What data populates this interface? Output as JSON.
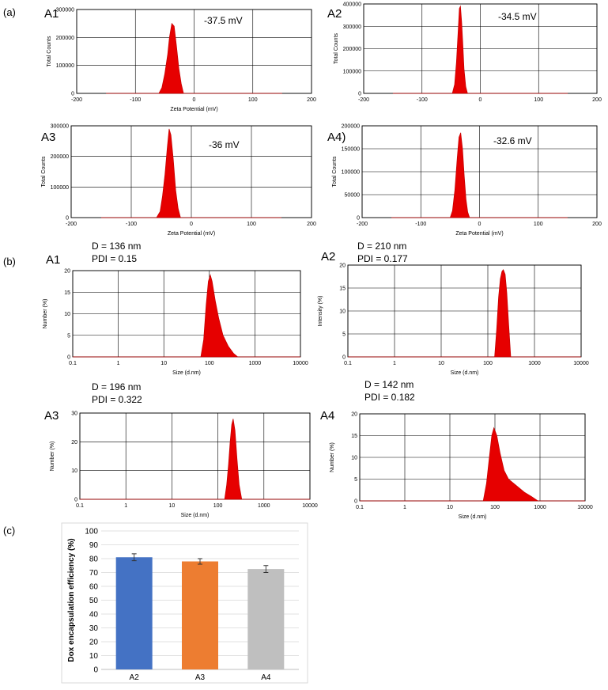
{
  "panels": {
    "a": "(a)",
    "b": "(b)",
    "c": "(c)"
  },
  "colors": {
    "peak": "#e60000",
    "peak_dark": "#c40000",
    "bar_a2": "#4472c4",
    "bar_a3": "#ed7d31",
    "bar_a4": "#bfbfbf"
  },
  "chart_data": [
    {
      "type": "area",
      "panel_label": "A1",
      "annotation": "-37.5 mV",
      "xlabel": "Zeta Potential (mV)",
      "ylabel": "Total Counts",
      "xlim": [
        -200,
        200
      ],
      "ylim": [
        0,
        300000
      ],
      "x_ticks": [
        -200,
        -100,
        0,
        100,
        200
      ],
      "y_ticks": [
        0,
        100000,
        200000,
        300000
      ],
      "grid": true,
      "series": [
        {
          "x": [
            -150,
            -60,
            -55,
            -50,
            -45,
            -42,
            -38,
            -34,
            -30,
            -26,
            -22,
            -18,
            150
          ],
          "y": [
            0,
            0,
            20000,
            70000,
            140000,
            200000,
            250000,
            240000,
            170000,
            90000,
            35000,
            0,
            0
          ]
        }
      ]
    },
    {
      "type": "area",
      "panel_label": "A2",
      "annotation": "-34.5 mV",
      "xlabel": "",
      "ylabel": "Total Counts",
      "xlim": [
        -200,
        200
      ],
      "ylim": [
        0,
        400000
      ],
      "x_ticks": [
        -200,
        -100,
        0,
        100,
        200
      ],
      "y_ticks": [
        0,
        100000,
        200000,
        300000,
        400000
      ],
      "grid": true,
      "series": [
        {
          "x": [
            -150,
            -48,
            -44,
            -41,
            -38,
            -36,
            -34,
            -32,
            -30,
            -28,
            -25,
            -22,
            150
          ],
          "y": [
            0,
            0,
            40000,
            140000,
            280000,
            380000,
            390000,
            320000,
            220000,
            110000,
            30000,
            0,
            0
          ]
        }
      ]
    },
    {
      "type": "area",
      "panel_label": "A3",
      "annotation": "-36 mV",
      "xlabel": "Zeta Potential (mV)",
      "ylabel": "Total Counts",
      "xlim": [
        -200,
        200
      ],
      "ylim": [
        0,
        300000
      ],
      "x_ticks": [
        -200,
        -100,
        0,
        100,
        200
      ],
      "y_ticks": [
        0,
        100000,
        200000,
        300000
      ],
      "grid": true,
      "series": [
        {
          "x": [
            -150,
            -58,
            -52,
            -48,
            -44,
            -40,
            -37,
            -34,
            -30,
            -26,
            -22,
            -18,
            150
          ],
          "y": [
            0,
            0,
            20000,
            70000,
            140000,
            230000,
            290000,
            270000,
            190000,
            90000,
            30000,
            0,
            0
          ]
        }
      ]
    },
    {
      "type": "area",
      "panel_label": "A4)",
      "annotation": "-32.6 mV",
      "xlabel": "Zeta Potential (mV)",
      "ylabel": "Total Counts",
      "xlim": [
        -200,
        200
      ],
      "ylim": [
        0,
        200000
      ],
      "x_ticks": [
        -200,
        -100,
        0,
        100,
        200
      ],
      "y_ticks": [
        0,
        50000,
        100000,
        150000,
        200000
      ],
      "grid": true,
      "series": [
        {
          "x": [
            -150,
            -50,
            -46,
            -42,
            -38,
            -35,
            -32,
            -29,
            -26,
            -23,
            -20,
            -17,
            150
          ],
          "y": [
            0,
            0,
            15000,
            60000,
            130000,
            175000,
            185000,
            150000,
            90000,
            40000,
            12000,
            0,
            0
          ]
        }
      ]
    },
    {
      "type": "area",
      "panel_label": "A1",
      "annotation": "D = 136 nm",
      "annotation2": "PDI = 0.15",
      "xlabel": "Size (d.nm)",
      "ylabel": "Number (%)",
      "x_scale": "log",
      "xlim": [
        0.1,
        10000
      ],
      "ylim": [
        0,
        20
      ],
      "x_ticks": [
        0.1,
        1,
        10,
        100,
        1000,
        10000
      ],
      "x_tick_labels": [
        "0.1",
        "1",
        "10",
        "100",
        "1000",
        "10000"
      ],
      "y_ticks": [
        0,
        5,
        10,
        15,
        20
      ],
      "grid": true,
      "series": [
        {
          "x": [
            0.1,
            65,
            75,
            85,
            95,
            105,
            115,
            135,
            160,
            200,
            260,
            340,
            420,
            10000
          ],
          "y": [
            0,
            0,
            4,
            12,
            17.5,
            19,
            17.5,
            13,
            9,
            5,
            2.5,
            0.8,
            0,
            0
          ]
        }
      ]
    },
    {
      "type": "area",
      "panel_label": "A2",
      "annotation": "D = 210 nm",
      "annotation2": "PDI = 0.177",
      "xlabel": "Size (d.nm)",
      "ylabel": "Intensity (%)",
      "x_scale": "log",
      "xlim": [
        0.1,
        10000
      ],
      "ylim": [
        0,
        20
      ],
      "x_ticks": [
        0.1,
        1,
        10,
        100,
        1000,
        10000
      ],
      "x_tick_labels": [
        "0.1",
        "1",
        "10",
        "100",
        "1000",
        "10000"
      ],
      "y_ticks": [
        0,
        5,
        10,
        15,
        20
      ],
      "grid": true,
      "series": [
        {
          "x": [
            0.1,
            140,
            155,
            170,
            185,
            200,
            215,
            235,
            255,
            280,
            310,
            10000
          ],
          "y": [
            0,
            0,
            6,
            13,
            17,
            18.6,
            19,
            18,
            14,
            7,
            0,
            0
          ]
        }
      ]
    },
    {
      "type": "area",
      "panel_label": "A3",
      "annotation": "D = 196 nm",
      "annotation2": "PDI = 0.322",
      "xlabel": "Size (d.nm)",
      "ylabel": "Number (%)",
      "x_scale": "log",
      "xlim": [
        0.1,
        10000
      ],
      "ylim": [
        0,
        30
      ],
      "x_ticks": [
        0.1,
        1,
        10,
        100,
        1000,
        10000
      ],
      "x_tick_labels": [
        "0.1",
        "1",
        "10",
        "100",
        "1000",
        "10000"
      ],
      "y_ticks": [
        0,
        10,
        20,
        30
      ],
      "grid": true,
      "series": [
        {
          "x": [
            0.1,
            140,
            155,
            170,
            185,
            200,
            215,
            235,
            260,
            290,
            330,
            10000
          ],
          "y": [
            0,
            0,
            5,
            12,
            20,
            26,
            28,
            24,
            14,
            5,
            0,
            0
          ]
        }
      ]
    },
    {
      "type": "area",
      "panel_label": "A4",
      "annotation": "D = 142 nm",
      "annotation2": "PDI = 0.182",
      "xlabel": "Size (d.nm)",
      "ylabel": "Number (%)",
      "x_scale": "log",
      "xlim": [
        0.1,
        10000
      ],
      "ylim": [
        0,
        20
      ],
      "x_ticks": [
        0.1,
        1,
        10,
        100,
        1000,
        10000
      ],
      "x_tick_labels": [
        "0.1",
        "1",
        "10",
        "100",
        "1000",
        "10000"
      ],
      "y_ticks": [
        0,
        5,
        10,
        15,
        20
      ],
      "grid": true,
      "series": [
        {
          "x": [
            0.1,
            55,
            65,
            75,
            85,
            95,
            110,
            130,
            160,
            200,
            300,
            450,
            650,
            900,
            10000
          ],
          "y": [
            0,
            0,
            4,
            10,
            15,
            16.8,
            15,
            11,
            7,
            5,
            3.5,
            2,
            1,
            0,
            0
          ]
        }
      ]
    },
    {
      "type": "bar",
      "categories": [
        "A2",
        "A3",
        "A4"
      ],
      "values": [
        81,
        78,
        72.5
      ],
      "errors": [
        2.5,
        2,
        2.5
      ],
      "ylabel": "Dox encapsulation efficiency (%)",
      "xlabel": "",
      "ylim": [
        0,
        100
      ],
      "y_ticks": [
        0,
        10,
        20,
        30,
        40,
        50,
        60,
        70,
        80,
        90,
        100
      ],
      "grid": true
    }
  ]
}
